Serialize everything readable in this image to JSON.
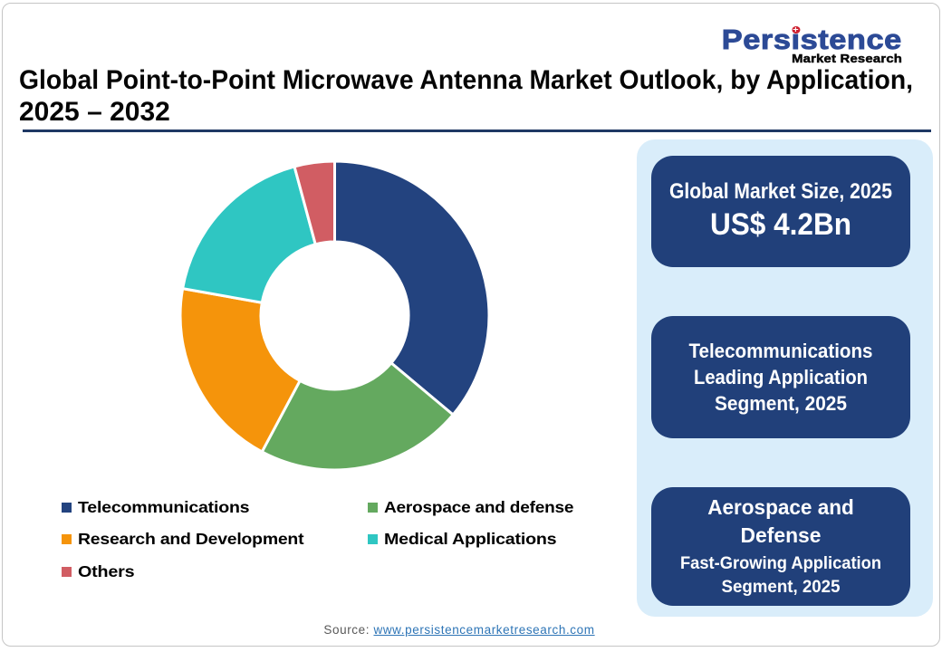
{
  "logo": {
    "name": "Persistence Market Research",
    "main_pre": "Pers",
    "main_i": "ı",
    "main_post": "stence",
    "sub": "Market Research",
    "brand_blue": "#2c4a96",
    "dot_red": "#ce2030"
  },
  "title": {
    "line1": "Global Point-to-Point Microwave Antenna Market Outlook, by Application,",
    "line2": "2025 – 2032",
    "full": "Global Point-to-Point Microwave Antenna Market Outlook, by Application, 2025 – 2032"
  },
  "chart_data": {
    "type": "pie",
    "title": "Global Point-to-Point Microwave Antenna Market Outlook, by Application, 2025 – 2032",
    "donut": true,
    "start_angle_deg": 0,
    "direction": "clockwise",
    "slices": [
      {
        "label": "Telecommunications",
        "value": 36.1,
        "color": "#23437f"
      },
      {
        "label": "Aerospace and defense",
        "value": 21.7,
        "color": "#64a95f"
      },
      {
        "label": "Research and Development",
        "value": 20.0,
        "color": "#f5940b"
      },
      {
        "label": "Medical Applications",
        "value": 18.0,
        "color": "#2fc6c2"
      },
      {
        "label": "Others",
        "value": 4.2,
        "color": "#d15d63"
      }
    ],
    "unit": "percent_share",
    "legend_position": "bottom-left"
  },
  "panel": {
    "box1": {
      "line1": "Global Market Size, 2025",
      "line2": "US$ 4.2Bn"
    },
    "box2": {
      "lines": [
        "Telecommunications",
        "Leading Application",
        "Segment, 2025"
      ]
    },
    "box3": {
      "head_lines": [
        "Aerospace and",
        "Defense"
      ],
      "sub_lines": [
        "Fast-Growing Application",
        "Segment, 2025"
      ]
    },
    "panel_bg": "#d9edfa",
    "box_bg": "#21407a"
  },
  "source": {
    "prefix": "Source: ",
    "link": "www.persistencemarketresearch.com"
  }
}
